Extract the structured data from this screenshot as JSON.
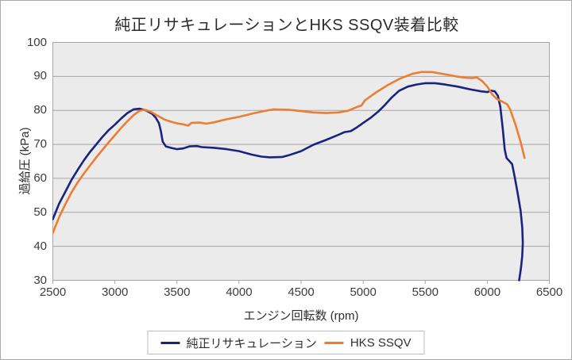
{
  "chart_data": {
    "type": "line",
    "title": "純正リサキュレーションとHKS SSQV装着比較",
    "xlabel": "エンジン回転数 (rpm)",
    "ylabel": "過給圧 (kPa)",
    "xlim": [
      2500,
      6500
    ],
    "ylim": [
      30,
      100
    ],
    "x_ticks": [
      2500,
      3000,
      3500,
      4000,
      4500,
      5000,
      5500,
      6000,
      6500
    ],
    "y_ticks": [
      30,
      40,
      50,
      60,
      70,
      80,
      90,
      100
    ],
    "grid": "horizontal-only",
    "legend_position": "bottom-center",
    "plot_bg": "#ebebeb",
    "grid_color": "#a6a6a6",
    "series": [
      {
        "name": "純正リサキュレーション",
        "color": "#1a237e",
        "points": [
          [
            2500,
            48
          ],
          [
            2550,
            52.5
          ],
          [
            2600,
            56
          ],
          [
            2650,
            59.5
          ],
          [
            2700,
            62.5
          ],
          [
            2750,
            65.3
          ],
          [
            2800,
            67.8
          ],
          [
            2850,
            70
          ],
          [
            2900,
            72.2
          ],
          [
            2950,
            74.2
          ],
          [
            3000,
            75.8
          ],
          [
            3050,
            77.6
          ],
          [
            3100,
            79.2
          ],
          [
            3150,
            80.3
          ],
          [
            3200,
            80.5
          ],
          [
            3250,
            80
          ],
          [
            3300,
            79
          ],
          [
            3330,
            77.8
          ],
          [
            3355,
            76.2
          ],
          [
            3370,
            74
          ],
          [
            3385,
            70.8
          ],
          [
            3410,
            69.4
          ],
          [
            3450,
            69
          ],
          [
            3500,
            68.6
          ],
          [
            3550,
            68.8
          ],
          [
            3600,
            69.4
          ],
          [
            3660,
            69.5
          ],
          [
            3700,
            69.2
          ],
          [
            3800,
            69
          ],
          [
            3900,
            68.6
          ],
          [
            4000,
            68
          ],
          [
            4100,
            67
          ],
          [
            4180,
            66.4
          ],
          [
            4250,
            66.2
          ],
          [
            4350,
            66.3
          ],
          [
            4400,
            66.8
          ],
          [
            4500,
            68
          ],
          [
            4600,
            69.9
          ],
          [
            4700,
            71.3
          ],
          [
            4800,
            72.8
          ],
          [
            4850,
            73.6
          ],
          [
            4900,
            73.9
          ],
          [
            4950,
            75
          ],
          [
            5000,
            76.3
          ],
          [
            5060,
            77.8
          ],
          [
            5120,
            79.6
          ],
          [
            5170,
            81.4
          ],
          [
            5230,
            83.8
          ],
          [
            5290,
            85.8
          ],
          [
            5360,
            87
          ],
          [
            5430,
            87.6
          ],
          [
            5500,
            88
          ],
          [
            5580,
            88
          ],
          [
            5660,
            87.6
          ],
          [
            5760,
            87
          ],
          [
            5860,
            86.2
          ],
          [
            5950,
            85.6
          ],
          [
            6000,
            85.4
          ],
          [
            6030,
            85.8
          ],
          [
            6060,
            85.6
          ],
          [
            6085,
            84.3
          ],
          [
            6105,
            81
          ],
          [
            6125,
            74.5
          ],
          [
            6140,
            68.5
          ],
          [
            6155,
            66
          ],
          [
            6175,
            65.2
          ],
          [
            6200,
            64.2
          ],
          [
            6220,
            60.5
          ],
          [
            6245,
            55.5
          ],
          [
            6268,
            50.5
          ],
          [
            6282,
            45.5
          ],
          [
            6286,
            41
          ],
          [
            6281,
            37
          ],
          [
            6271,
            33.5
          ],
          [
            6257,
            30
          ]
        ]
      },
      {
        "name": "HKS SSQV",
        "color": "#ed7d31",
        "points": [
          [
            2500,
            44
          ],
          [
            2550,
            48.5
          ],
          [
            2600,
            52.3
          ],
          [
            2650,
            55.8
          ],
          [
            2700,
            58.8
          ],
          [
            2750,
            61.4
          ],
          [
            2800,
            63.8
          ],
          [
            2850,
            66.2
          ],
          [
            2900,
            68.4
          ],
          [
            2950,
            70.6
          ],
          [
            3000,
            72.7
          ],
          [
            3050,
            74.8
          ],
          [
            3100,
            76.8
          ],
          [
            3150,
            78.6
          ],
          [
            3200,
            79.9
          ],
          [
            3240,
            80.2
          ],
          [
            3290,
            79.6
          ],
          [
            3340,
            78.5
          ],
          [
            3400,
            77.3
          ],
          [
            3450,
            76.7
          ],
          [
            3500,
            76.2
          ],
          [
            3550,
            75.9
          ],
          [
            3590,
            75.5
          ],
          [
            3615,
            76.3
          ],
          [
            3680,
            76.4
          ],
          [
            3740,
            76.1
          ],
          [
            3800,
            76.5
          ],
          [
            3900,
            77.4
          ],
          [
            4000,
            78.1
          ],
          [
            4100,
            79
          ],
          [
            4200,
            79.8
          ],
          [
            4280,
            80.3
          ],
          [
            4400,
            80.2
          ],
          [
            4500,
            79.8
          ],
          [
            4600,
            79.4
          ],
          [
            4700,
            79.2
          ],
          [
            4800,
            79.4
          ],
          [
            4880,
            79.9
          ],
          [
            4950,
            81
          ],
          [
            4985,
            81.4
          ],
          [
            5015,
            83
          ],
          [
            5100,
            85.2
          ],
          [
            5200,
            87.5
          ],
          [
            5300,
            89.4
          ],
          [
            5400,
            90.8
          ],
          [
            5470,
            91.3
          ],
          [
            5550,
            91.3
          ],
          [
            5650,
            90.7
          ],
          [
            5750,
            90
          ],
          [
            5830,
            89.6
          ],
          [
            5880,
            89.5
          ],
          [
            5915,
            89.7
          ],
          [
            5960,
            88.6
          ],
          [
            6000,
            87
          ],
          [
            6040,
            84.7
          ],
          [
            6075,
            83.4
          ],
          [
            6120,
            82.6
          ],
          [
            6160,
            81.8
          ],
          [
            6185,
            80.2
          ],
          [
            6230,
            75.5
          ],
          [
            6270,
            70.5
          ],
          [
            6300,
            66
          ]
        ]
      }
    ]
  }
}
